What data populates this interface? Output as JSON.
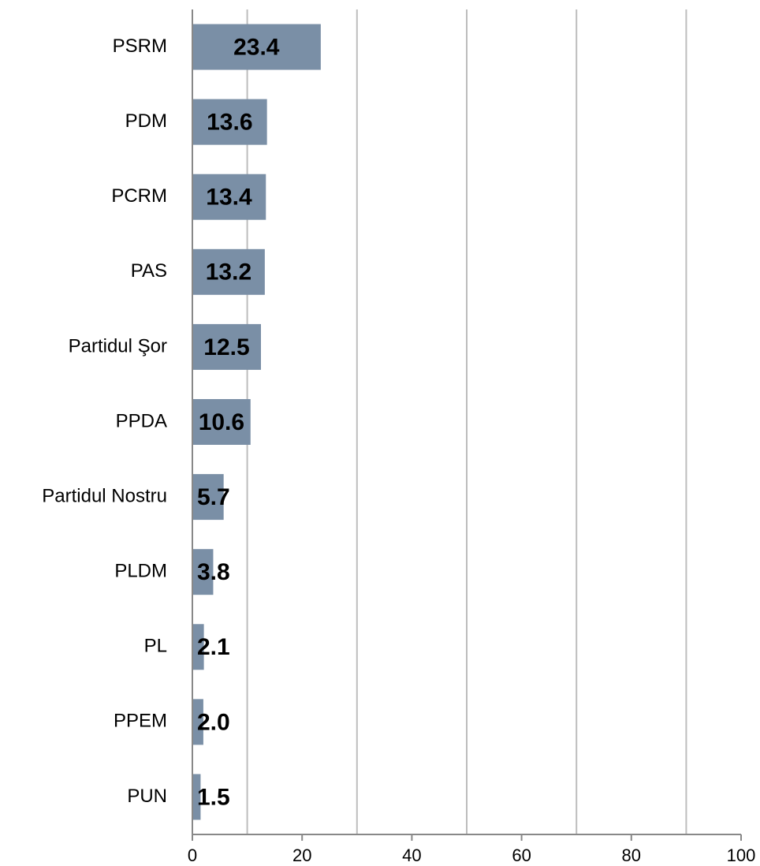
{
  "chart_data": {
    "type": "hbar",
    "categories": [
      "PSRM",
      "PDM",
      "PCRM",
      "PAS",
      "Partidul Şor",
      "PPDA",
      "Partidul Nostru",
      "PLDM",
      "PL",
      "PPEM",
      "PUN"
    ],
    "values": [
      23.4,
      13.6,
      13.4,
      13.2,
      12.5,
      10.6,
      5.7,
      3.8,
      2.1,
      2.0,
      1.5
    ],
    "value_labels": [
      "23.4",
      "13.6",
      "13.4",
      "13.2",
      "12.5",
      "10.6",
      "5.7",
      "3.8",
      "2.1",
      "2.0",
      "1.5"
    ],
    "color": "#7a8fa6",
    "xlim": [
      0,
      100
    ],
    "xticks": [
      0,
      20,
      40,
      60,
      80,
      100
    ],
    "xgrid": [
      10,
      30,
      50,
      70,
      90
    ],
    "grid": true
  }
}
